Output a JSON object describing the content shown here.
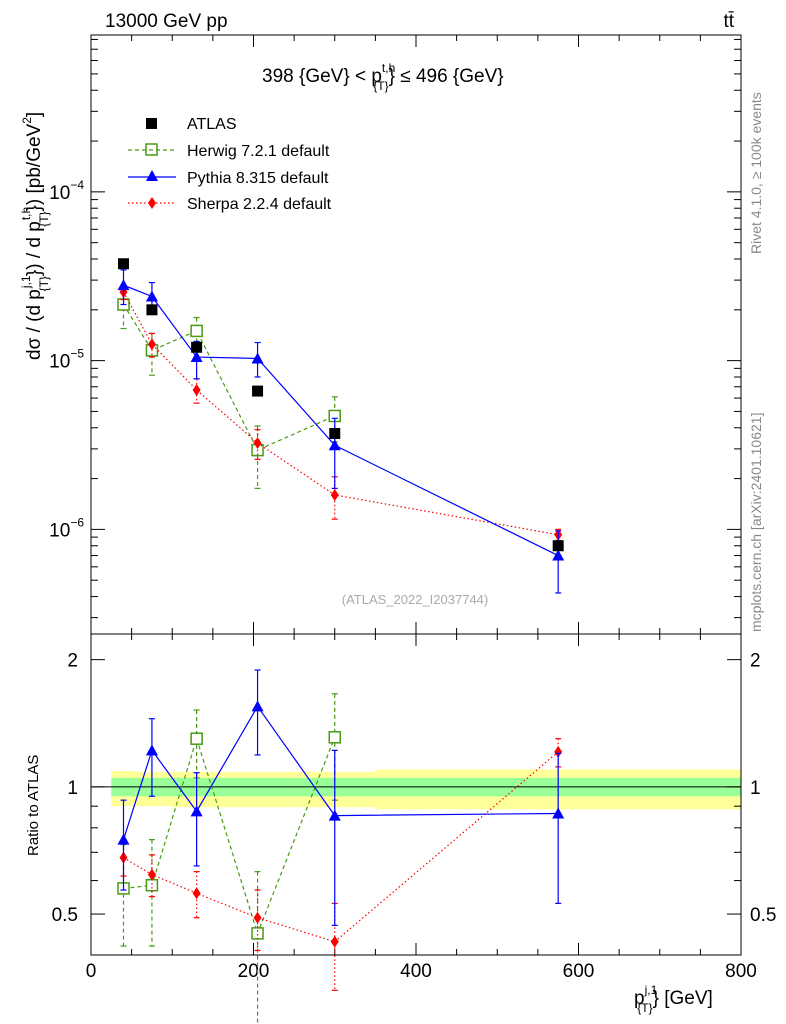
{
  "header": {
    "left": "13000 GeV pp",
    "right": "tt̄"
  },
  "side_text": {
    "rivet": "Rivet 4.1.0, ≥ 100k events",
    "mcplots": "mcplots.cern.ch [arXiv:2401.10621]"
  },
  "analysis_ref": "(ATLAS_2022_I2037744)",
  "cut_label": {
    "pre": "398 {GeV} < p",
    "sup": "t,h",
    "sub": "{T}",
    "post": "} ≤ 496 {GeV}",
    "post_open": "}"
  },
  "y_main_label": "dσ / (d p{T}j,1 ) / d p{T}t,h ) [pb/GeV²]",
  "y_main_label_parts": {
    "a": "dσ / (d p",
    "a_sup": "j,1",
    "a_sub": "{T}",
    "b": "}) / d p",
    "b_sup": "t,h",
    "b_sub": "{T}",
    "c": "}) [pb/GeV",
    "c_sup": "2",
    "d": "]"
  },
  "y_ratio_label": "Ratio to ATLAS",
  "x_label": {
    "base": "p",
    "sup": "j,1",
    "sub": "{T}",
    "tail": "} [GeV]"
  },
  "chart_data": [
    {
      "type": "scatter",
      "panel": "main",
      "yscale": "log",
      "xlim": [
        0,
        800
      ],
      "ylim": [
        2.4e-07,
        0.00085
      ],
      "x_ticks": [
        0,
        200,
        400,
        600,
        800
      ],
      "y_ticks": [
        {
          "value": 1e-06,
          "base": "10",
          "exp": "−6"
        },
        {
          "value": 1e-05,
          "base": "10",
          "exp": "−5"
        },
        {
          "value": 0.0001,
          "base": "10",
          "exp": "−4"
        }
      ],
      "series": [
        {
          "name": "ATLAS",
          "style": "data",
          "color": "#000000",
          "x": [
            40,
            75,
            130,
            205,
            300,
            575
          ],
          "y": [
            3.75e-05,
            2e-05,
            1.2e-05,
            6.6e-06,
            3.7e-06,
            8e-07
          ],
          "xerr": [
            0,
            0,
            0,
            0,
            0,
            0
          ],
          "yerr": [
            0,
            0,
            0,
            0,
            0,
            0
          ]
        },
        {
          "name": "Herwig 7.2.1 default",
          "style": "herwig",
          "color": "#4a9a14",
          "x": [
            40,
            75,
            130,
            205,
            300
          ],
          "y": [
            2.15e-05,
            1.15e-05,
            1.5e-05,
            2.95e-06,
            4.7e-06
          ],
          "ylo": [
            1.55e-05,
            8.2e-06,
            1.2e-05,
            1.75e-06,
            3.3e-06
          ],
          "yhi": [
            2.75e-05,
            1.45e-05,
            1.8e-05,
            4.1e-06,
            6.1e-06
          ]
        },
        {
          "name": "Pythia 8.315 default",
          "style": "pythia",
          "color": "#0000ff",
          "x": [
            40,
            75,
            130,
            205,
            300,
            575
          ],
          "y": [
            2.8e-05,
            2.4e-05,
            1.05e-05,
            1.03e-05,
            3.15e-06,
            7e-07
          ],
          "ylo": [
            2.15e-05,
            1.9e-05,
            7.8e-06,
            8e-06,
            1.75e-06,
            4.2e-07
          ],
          "yhi": [
            3.45e-05,
            2.9e-05,
            1.3e-05,
            1.28e-05,
            4.55e-06,
            9.8e-07
          ]
        },
        {
          "name": "Sherpa 2.2.4 default",
          "style": "sherpa",
          "color": "#ff0000",
          "x": [
            40,
            75,
            130,
            205,
            300,
            575
          ],
          "y": [
            2.55e-05,
            1.25e-05,
            6.7e-06,
            3.25e-06,
            1.6e-06,
            9.3e-07
          ],
          "ylo": [
            2.3e-05,
            1.05e-05,
            5.6e-06,
            2.6e-06,
            1.15e-06,
            8.6e-07
          ],
          "yhi": [
            2.8e-05,
            1.45e-05,
            7.8e-06,
            3.9e-06,
            2.05e-06,
            1e-06
          ]
        }
      ]
    },
    {
      "type": "scatter",
      "panel": "ratio",
      "yscale": "log",
      "ylabel": "Ratio to ATLAS",
      "xlim": [
        0,
        800
      ],
      "ylim": [
        0.4,
        2.3
      ],
      "y_ticks": [
        0.5,
        1,
        2
      ],
      "x_ticks": [
        0,
        200,
        400,
        600,
        800
      ],
      "bands": {
        "x": [
          [
            25,
            55
          ],
          [
            55,
            100
          ],
          [
            100,
            160
          ],
          [
            160,
            250
          ],
          [
            250,
            350
          ],
          [
            350,
            800
          ]
        ],
        "inner_lo": [
          0.95,
          0.95,
          0.95,
          0.95,
          0.95,
          0.95
        ],
        "inner_hi": [
          1.05,
          1.05,
          1.05,
          1.05,
          1.05,
          1.05
        ],
        "outer_lo": [
          0.9,
          0.9,
          0.895,
          0.895,
          0.895,
          0.885
        ],
        "outer_hi": [
          1.09,
          1.085,
          1.085,
          1.085,
          1.085,
          1.1
        ],
        "inner_color": "#99ff99",
        "outer_color": "#ffff99"
      },
      "series": [
        {
          "name": "Herwig 7.2.1 default",
          "style": "herwig",
          "color": "#4a9a14",
          "x": [
            40,
            75,
            130,
            205,
            300
          ],
          "y": [
            0.575,
            0.585,
            1.3,
            0.45,
            1.31
          ],
          "ylo": [
            0.42,
            0.42,
            1.05,
            0.27,
            0.93
          ],
          "yhi": [
            0.73,
            0.75,
            1.52,
            0.63,
            1.66
          ]
        },
        {
          "name": "Pythia 8.315 default",
          "style": "pythia",
          "color": "#0000ff",
          "x": [
            40,
            75,
            130,
            205,
            300,
            575
          ],
          "y": [
            0.75,
            1.22,
            0.875,
            1.55,
            0.855,
            0.865
          ],
          "ylo": [
            0.57,
            0.95,
            0.65,
            1.19,
            0.47,
            0.53
          ],
          "yhi": [
            0.93,
            1.45,
            1.08,
            1.89,
            1.22,
            1.2
          ]
        },
        {
          "name": "Sherpa 2.2.4 default",
          "style": "sherpa",
          "color": "#ff0000",
          "x": [
            40,
            75,
            130,
            205,
            300,
            575
          ],
          "y": [
            0.68,
            0.62,
            0.56,
            0.49,
            0.43,
            1.21
          ],
          "ylo": [
            0.615,
            0.55,
            0.49,
            0.41,
            0.33,
            1.115
          ],
          "yhi": [
            0.745,
            0.69,
            0.63,
            0.57,
            0.53,
            1.3
          ]
        }
      ]
    }
  ]
}
